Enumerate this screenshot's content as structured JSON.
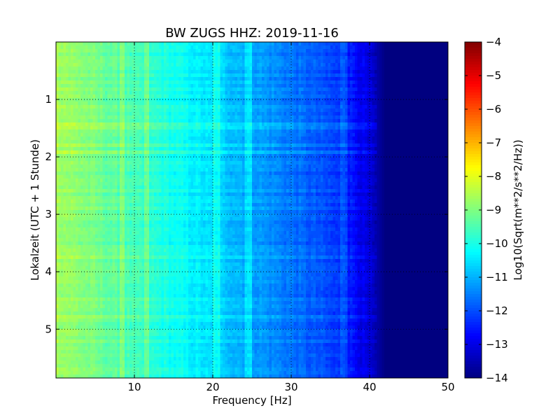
{
  "chart_data": {
    "type": "heatmap",
    "title": "BW ZUGS HHZ: 2019-11-16",
    "xlabel": "Frequency [Hz]",
    "ylabel": "Lokalzeit (UTC + 1 Stunde)",
    "colorbar_label": "Log10(Sqrt(m**2/s**2/Hz))",
    "xlim": [
      0,
      50
    ],
    "ylim": [
      5.85,
      0
    ],
    "xticks": [
      10,
      20,
      30,
      40,
      50
    ],
    "yticks": [
      1,
      2,
      3,
      4,
      5
    ],
    "clim": [
      -14,
      -4
    ],
    "colorbar_ticks": [
      -4,
      -5,
      -6,
      -7,
      -8,
      -9,
      -10,
      -11,
      -12,
      -13,
      -14
    ],
    "colormap": "jet",
    "grid": true,
    "spectrum_profile": {
      "frequency_hz": [
        0,
        2,
        5,
        10,
        15,
        20,
        25,
        30,
        35,
        38,
        40,
        42,
        50
      ],
      "log10_amplitude": [
        -8.6,
        -8.8,
        -9.1,
        -9.6,
        -10.1,
        -10.6,
        -11.1,
        -11.6,
        -12.1,
        -12.6,
        -13.2,
        -14.0,
        -14.0
      ]
    },
    "spectral_lines_hz": [
      8.5,
      11.5,
      20.5,
      24.5,
      36.7
    ]
  }
}
